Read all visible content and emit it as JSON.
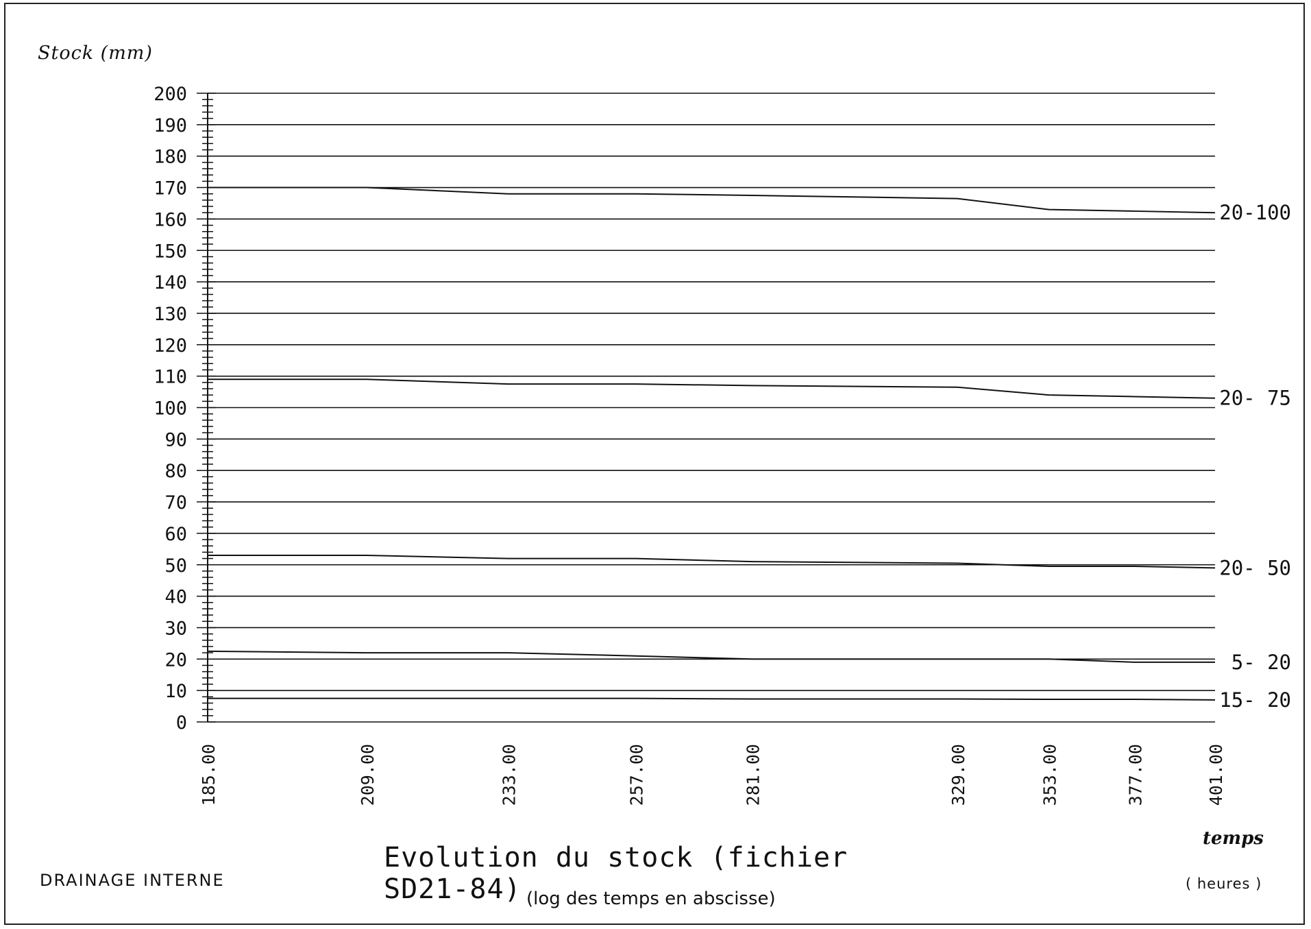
{
  "chart_data": {
    "type": "line",
    "title": "Evolution du stock (fichier SD21-84)",
    "subtitle": "(log des temps en abscisse)",
    "ylabel": "Stock (mm)",
    "xlabel": "temps",
    "xunit": "( heures )",
    "x_scale": "log",
    "xlim": [
      185,
      401
    ],
    "ylim": [
      0,
      200
    ],
    "y_ticks": [
      0,
      10,
      20,
      30,
      40,
      50,
      60,
      70,
      80,
      90,
      100,
      110,
      120,
      130,
      140,
      150,
      160,
      170,
      180,
      190,
      200
    ],
    "x_ticks": [
      185,
      209,
      233,
      257,
      281,
      329,
      353,
      377,
      401
    ],
    "x_tick_labels": [
      "185.00",
      "209.00",
      "233.00",
      "257.00",
      "281.00",
      "329.00",
      "353.00",
      "377.00",
      "401.00"
    ],
    "grid": "horizontal",
    "legend": "inline-right",
    "x": [
      185,
      209,
      233,
      257,
      281,
      329,
      353,
      377,
      401
    ],
    "series": [
      {
        "name": "20-100",
        "values": [
          170,
          170,
          168,
          168,
          167.5,
          166.5,
          163,
          162.5,
          162
        ]
      },
      {
        "name": "20- 75",
        "values": [
          109,
          109,
          107.5,
          107.5,
          107,
          106.5,
          104,
          103.5,
          103
        ]
      },
      {
        "name": "20- 50",
        "values": [
          53,
          53,
          52,
          52,
          51,
          50.5,
          49.5,
          49.5,
          49
        ]
      },
      {
        "name": "5- 20",
        "values": [
          22.5,
          22,
          22,
          21,
          20,
          20,
          20,
          19,
          19
        ]
      },
      {
        "name": "15- 20",
        "values": [
          7.5,
          7.5,
          7.5,
          7.5,
          7.3,
          7.3,
          7.2,
          7.2,
          7
        ]
      }
    ]
  },
  "footer": "DRAINAGE  INTERNE"
}
